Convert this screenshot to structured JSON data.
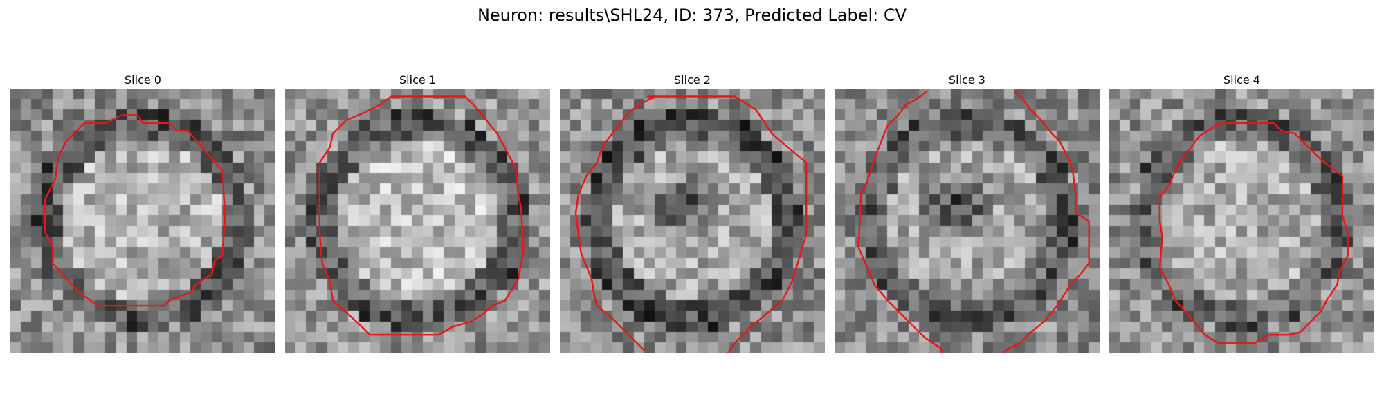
{
  "figure": {
    "title": "Neuron: results\\SHL24, ID: 373, Predicted Label: CV"
  },
  "colors": {
    "contour": "#e8161b",
    "background": "#ffffff"
  },
  "panels": [
    {
      "title": "Slice 0",
      "seed": 11,
      "center_brightness": 0.7,
      "ring_darkness": 0.28,
      "outer_brightness": 0.55,
      "has_dark_center": false,
      "contour": [
        [
          0.42,
          0.1
        ],
        [
          0.48,
          0.1
        ],
        [
          0.5,
          0.13
        ],
        [
          0.6,
          0.13
        ],
        [
          0.63,
          0.16
        ],
        [
          0.67,
          0.16
        ],
        [
          0.8,
          0.31
        ],
        [
          0.81,
          0.48
        ],
        [
          0.8,
          0.63
        ],
        [
          0.77,
          0.65
        ],
        [
          0.76,
          0.7
        ],
        [
          0.7,
          0.74
        ],
        [
          0.68,
          0.77
        ],
        [
          0.6,
          0.8
        ],
        [
          0.58,
          0.82
        ],
        [
          0.33,
          0.82
        ],
        [
          0.26,
          0.77
        ],
        [
          0.16,
          0.66
        ],
        [
          0.16,
          0.6
        ],
        [
          0.13,
          0.54
        ],
        [
          0.13,
          0.42
        ],
        [
          0.17,
          0.34
        ],
        [
          0.18,
          0.26
        ],
        [
          0.21,
          0.2
        ],
        [
          0.28,
          0.13
        ],
        [
          0.36,
          0.13
        ]
      ]
    },
    {
      "title": "Slice 1",
      "seed": 23,
      "center_brightness": 0.74,
      "ring_darkness": 0.3,
      "outer_brightness": 0.58,
      "has_dark_center": false,
      "contour": [
        [
          0.4,
          0.03
        ],
        [
          0.68,
          0.03
        ],
        [
          0.72,
          0.07
        ],
        [
          0.8,
          0.17
        ],
        [
          0.87,
          0.3
        ],
        [
          0.88,
          0.4
        ],
        [
          0.89,
          0.45
        ],
        [
          0.9,
          0.61
        ],
        [
          0.88,
          0.72
        ],
        [
          0.83,
          0.8
        ],
        [
          0.78,
          0.82
        ],
        [
          0.75,
          0.85
        ],
        [
          0.7,
          0.88
        ],
        [
          0.63,
          0.9
        ],
        [
          0.58,
          0.93
        ],
        [
          0.32,
          0.93
        ],
        [
          0.28,
          0.89
        ],
        [
          0.18,
          0.8
        ],
        [
          0.17,
          0.73
        ],
        [
          0.14,
          0.66
        ],
        [
          0.13,
          0.54
        ],
        [
          0.13,
          0.28
        ],
        [
          0.17,
          0.22
        ],
        [
          0.18,
          0.17
        ],
        [
          0.23,
          0.12
        ],
        [
          0.3,
          0.09
        ],
        [
          0.36,
          0.06
        ]
      ]
    },
    {
      "title": "Slice 2",
      "seed": 37,
      "center_brightness": 0.66,
      "ring_darkness": 0.25,
      "outer_brightness": 0.55,
      "has_dark_center": true,
      "contour": [
        [
          0.33,
          0.03
        ],
        [
          0.66,
          0.03
        ],
        [
          0.74,
          0.08
        ],
        [
          0.8,
          0.17
        ],
        [
          0.87,
          0.23
        ],
        [
          0.93,
          0.28
        ],
        [
          0.93,
          0.55
        ],
        [
          0.9,
          0.65
        ],
        [
          0.88,
          0.72
        ],
        [
          0.84,
          0.8
        ],
        [
          0.78,
          0.85
        ],
        [
          0.72,
          0.9
        ],
        [
          0.66,
          0.96
        ],
        [
          0.64,
          0.99
        ],
        [
          0.62,
          1.02
        ]
      ]
    },
    {
      "title": "Slice 3",
      "seed": 53,
      "center_brightness": 0.64,
      "ring_darkness": 0.3,
      "outer_brightness": 0.55,
      "has_dark_center": true,
      "contour": [
        [
          0.35,
          0.01
        ],
        [
          0.31,
          0.04
        ],
        [
          0.27,
          0.06
        ],
        [
          0.24,
          0.1
        ],
        [
          0.2,
          0.14
        ],
        [
          0.16,
          0.24
        ],
        [
          0.13,
          0.33
        ],
        [
          0.12,
          0.36
        ],
        [
          0.1,
          0.4
        ],
        [
          0.09,
          0.6
        ],
        [
          0.13,
          0.69
        ],
        [
          0.15,
          0.74
        ],
        [
          0.2,
          0.8
        ],
        [
          0.25,
          0.85
        ],
        [
          0.3,
          0.9
        ],
        [
          0.34,
          0.94
        ],
        [
          0.37,
          0.96
        ],
        [
          0.4,
          0.98
        ],
        [
          0.41,
          1.01
        ]
      ]
    },
    {
      "title": "Slice 4",
      "seed": 71,
      "center_brightness": 0.68,
      "ring_darkness": 0.32,
      "outer_brightness": 0.57,
      "has_dark_center": false,
      "contour": [
        [
          0.42,
          0.13
        ],
        [
          0.62,
          0.13
        ],
        [
          0.65,
          0.16
        ],
        [
          0.7,
          0.17
        ],
        [
          0.75,
          0.22
        ],
        [
          0.8,
          0.27
        ],
        [
          0.88,
          0.33
        ],
        [
          0.88,
          0.48
        ],
        [
          0.9,
          0.55
        ],
        [
          0.9,
          0.63
        ],
        [
          0.87,
          0.69
        ],
        [
          0.86,
          0.74
        ],
        [
          0.82,
          0.8
        ],
        [
          0.8,
          0.84
        ],
        [
          0.72,
          0.92
        ],
        [
          0.68,
          0.93
        ],
        [
          0.6,
          0.93
        ],
        [
          0.55,
          0.96
        ],
        [
          0.41,
          0.96
        ],
        [
          0.36,
          0.93
        ],
        [
          0.32,
          0.88
        ],
        [
          0.25,
          0.8
        ],
        [
          0.22,
          0.73
        ],
        [
          0.19,
          0.68
        ],
        [
          0.2,
          0.56
        ],
        [
          0.19,
          0.5
        ],
        [
          0.19,
          0.41
        ],
        [
          0.23,
          0.36
        ],
        [
          0.24,
          0.33
        ],
        [
          0.27,
          0.27
        ],
        [
          0.31,
          0.22
        ],
        [
          0.34,
          0.18
        ],
        [
          0.37,
          0.16
        ]
      ]
    }
  ]
}
